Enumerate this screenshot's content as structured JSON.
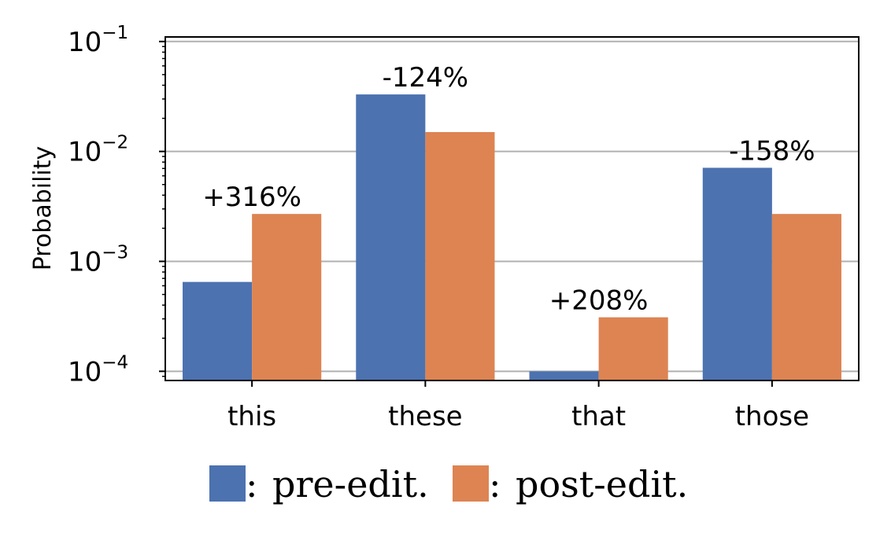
{
  "chart_data": {
    "type": "bar",
    "ylabel": "Probability",
    "yscale": "log",
    "ylim": [
      8.25e-05,
      0.11
    ],
    "yticks": [
      {
        "value": 0.1,
        "base": "10",
        "exp": "−1"
      },
      {
        "value": 0.01,
        "base": "10",
        "exp": "−2"
      },
      {
        "value": 0.001,
        "base": "10",
        "exp": "−3"
      },
      {
        "value": 0.0001,
        "base": "10",
        "exp": "−4"
      }
    ],
    "grid": "horizontal",
    "categories": [
      "this",
      "these",
      "that",
      "those"
    ],
    "series": [
      {
        "name": "pre-edit.",
        "color": "#4c72b0",
        "values": [
          0.00065,
          0.033,
          0.0001,
          0.0071
        ]
      },
      {
        "name": "post-edit.",
        "color": "#dd8452",
        "values": [
          0.0027,
          0.015,
          0.00031,
          0.0027
        ]
      }
    ],
    "annotations": [
      "+316%",
      "-124%",
      "+208%",
      "-158%"
    ],
    "legend": {
      "placement": "bottom",
      "separator": ":"
    }
  }
}
